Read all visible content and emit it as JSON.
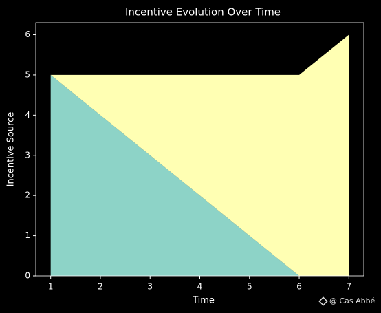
{
  "chart_data": {
    "type": "stacked_area",
    "title": "Incentive Evolution Over Time",
    "xlabel": "Time",
    "ylabel": "Incentive Source",
    "x": [
      1,
      2,
      3,
      4,
      5,
      6,
      7
    ],
    "series": [
      {
        "color": "#8dd3c7",
        "values": [
          5,
          4,
          3,
          2,
          1,
          0,
          0
        ]
      },
      {
        "color": "#ffffb3",
        "values": [
          0,
          1,
          2,
          3,
          4,
          5,
          6
        ]
      }
    ],
    "xlim": [
      0.7,
      7.3
    ],
    "ylim": [
      0,
      6.3
    ],
    "xticks": [
      1,
      2,
      3,
      4,
      5,
      6,
      7
    ],
    "yticks": [
      0,
      1,
      2,
      3,
      4,
      5,
      6
    ],
    "watermark": "@ Cas Abbé"
  }
}
